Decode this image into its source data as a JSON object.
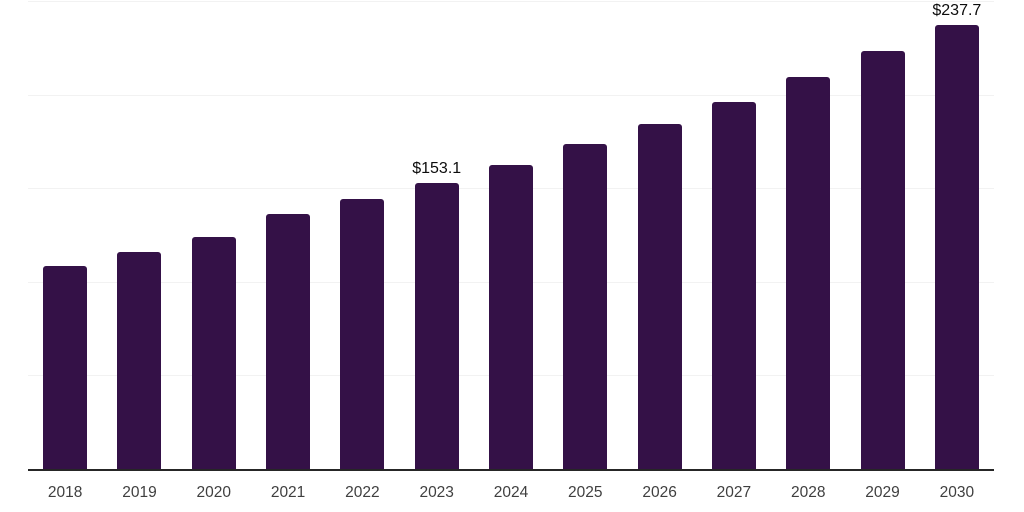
{
  "chart_data": {
    "type": "bar",
    "categories": [
      "2018",
      "2019",
      "2020",
      "2021",
      "2022",
      "2023",
      "2024",
      "2025",
      "2026",
      "2027",
      "2028",
      "2029",
      "2030"
    ],
    "values": [
      108.9,
      116.3,
      124.4,
      136.6,
      144.7,
      153.1,
      162.9,
      174.0,
      184.7,
      196.4,
      209.8,
      223.7,
      237.7
    ],
    "data_labels": {
      "2023": "$153.1",
      "2030": "$237.7"
    },
    "title": "",
    "xlabel": "",
    "ylabel": "",
    "ylim": [
      0,
      250
    ],
    "gridline_step": 50,
    "grid": true,
    "legend": false,
    "y_tick_labels_visible": false,
    "bar_color": "#341147",
    "axis_line_color": "#262626",
    "gridline_color": "#f2f2f2",
    "tick_label_color": "#3f3f3f",
    "data_label_color": "#0d0d0d",
    "background_color": "#ffffff"
  }
}
